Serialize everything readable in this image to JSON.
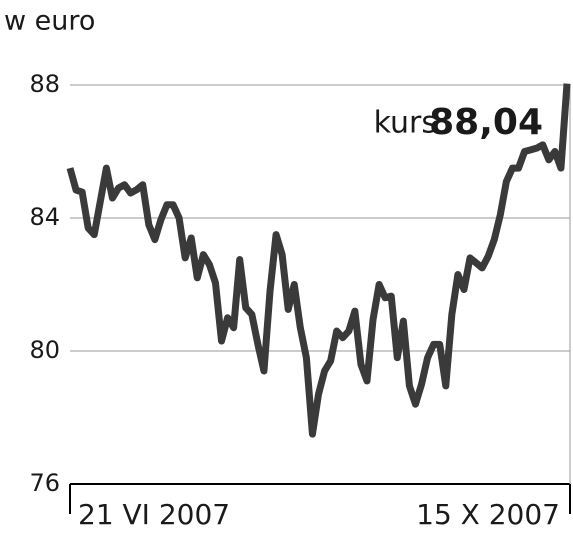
{
  "chart_data": {
    "type": "line",
    "title": "w euro",
    "annotation": {
      "prefix": "kurs",
      "value": "88,04"
    },
    "categories": [
      "21 VI 2007",
      null,
      null,
      null,
      null,
      null,
      null,
      null,
      null,
      null,
      null,
      null,
      null,
      null,
      null,
      null,
      null,
      null,
      null,
      null,
      null,
      null,
      null,
      null,
      null,
      null,
      null,
      null,
      null,
      null,
      null,
      null,
      null,
      null,
      null,
      null,
      null,
      null,
      null,
      null,
      null,
      null,
      null,
      null,
      null,
      null,
      null,
      null,
      null,
      null,
      null,
      null,
      null,
      null,
      null,
      null,
      null,
      null,
      null,
      null,
      null,
      null,
      null,
      null,
      null,
      null,
      null,
      null,
      null,
      null,
      null,
      null,
      null,
      null,
      null,
      null,
      null,
      null,
      null,
      null,
      null,
      null,
      "15 X 2007"
    ],
    "values": [
      85.5,
      84.84,
      84.78,
      83.7,
      83.5,
      84.5,
      85.5,
      84.6,
      84.9,
      85.0,
      84.75,
      84.85,
      85.0,
      83.8,
      83.35,
      83.95,
      84.4,
      84.4,
      84.0,
      82.8,
      83.4,
      82.2,
      82.9,
      82.6,
      82.05,
      80.3,
      81.0,
      80.7,
      82.75,
      81.3,
      81.1,
      80.2,
      79.4,
      81.8,
      83.5,
      82.9,
      81.25,
      82.0,
      80.7,
      79.8,
      77.5,
      78.7,
      79.4,
      79.7,
      80.6,
      80.4,
      80.6,
      81.2,
      79.6,
      79.1,
      80.95,
      82.0,
      81.6,
      81.65,
      79.8,
      80.9,
      78.95,
      78.4,
      79.0,
      79.8,
      80.2,
      80.2,
      78.95,
      81.1,
      82.3,
      81.85,
      82.8,
      82.65,
      82.5,
      82.85,
      83.35,
      84.1,
      85.1,
      85.5,
      85.5,
      86.0,
      86.05,
      86.1,
      86.2,
      85.75,
      86.0,
      85.5,
      88.04
    ],
    "color": "#3a3a3a",
    "ylim": [
      76,
      88
    ],
    "yticks": [
      76,
      80,
      84,
      88
    ],
    "grid": true
  }
}
